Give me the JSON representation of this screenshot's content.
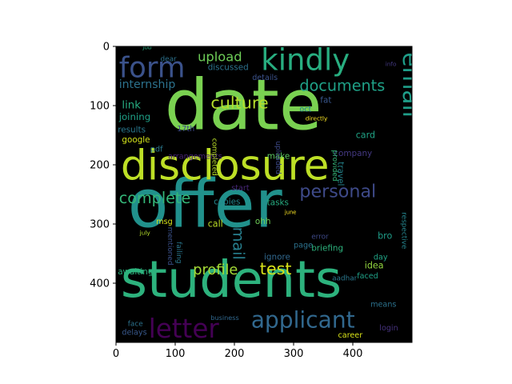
{
  "chart_data": {
    "type": "image",
    "description_kind": "word-cloud",
    "background_color": "#000000",
    "xlim": [
      0,
      500
    ],
    "ylim": [
      500,
      0
    ],
    "x_ticks": [
      0,
      100,
      200,
      300,
      400
    ],
    "y_ticks": [
      0,
      100,
      200,
      300,
      400
    ],
    "words": [
      {
        "text": "offer",
        "x": 20,
        "y": 305,
        "size": 112,
        "color": "#21918c",
        "vertical": false
      },
      {
        "text": "date",
        "x": 82,
        "y": 140,
        "size": 118,
        "color": "#7ad151",
        "vertical": false
      },
      {
        "text": "students",
        "x": 8,
        "y": 423,
        "size": 86,
        "color": "#2db27d",
        "vertical": false
      },
      {
        "text": "disclosure",
        "x": 8,
        "y": 225,
        "size": 70,
        "color": "#bddf26",
        "vertical": false
      },
      {
        "text": "kindly",
        "x": 245,
        "y": 40,
        "size": 50,
        "color": "#28ae80",
        "vertical": false
      },
      {
        "text": "form",
        "x": 5,
        "y": 52,
        "size": 48,
        "color": "#3b528b",
        "vertical": false
      },
      {
        "text": "email",
        "x": 485,
        "y": 10,
        "size": 40,
        "color": "#1f9e89",
        "vertical": true
      },
      {
        "text": "letter",
        "x": 55,
        "y": 492,
        "size": 44,
        "color": "#440154",
        "vertical": false
      },
      {
        "text": "applicant",
        "x": 228,
        "y": 475,
        "size": 38,
        "color": "#31688e",
        "vertical": false
      },
      {
        "text": "personal",
        "x": 310,
        "y": 255,
        "size": 30,
        "color": "#3e4a89",
        "vertical": false
      },
      {
        "text": "complete",
        "x": 5,
        "y": 265,
        "size": 26,
        "color": "#35b779",
        "vertical": false
      },
      {
        "text": "culture",
        "x": 160,
        "y": 105,
        "size": 28,
        "color": "#b5de2b",
        "vertical": false
      },
      {
        "text": "documents",
        "x": 310,
        "y": 75,
        "size": 26,
        "color": "#1fa187",
        "vertical": false
      },
      {
        "text": "upload",
        "x": 138,
        "y": 25,
        "size": 22,
        "color": "#6ece58",
        "vertical": false
      },
      {
        "text": "internship",
        "x": 5,
        "y": 70,
        "size": 19,
        "color": "#2c728e",
        "vertical": false
      },
      {
        "text": "test",
        "x": 243,
        "y": 385,
        "size": 28,
        "color": "#d8e219",
        "vertical": false
      },
      {
        "text": "profile",
        "x": 130,
        "y": 385,
        "size": 24,
        "color": "#a5db36",
        "vertical": false
      },
      {
        "text": "mail",
        "x": 198,
        "y": 305,
        "size": 26,
        "color": "#277f8e",
        "vertical": true
      },
      {
        "text": "link",
        "x": 10,
        "y": 105,
        "size": 18,
        "color": "#27ad81",
        "vertical": false
      },
      {
        "text": "joining",
        "x": 5,
        "y": 124,
        "size": 16,
        "color": "#1fa187",
        "vertical": false
      },
      {
        "text": "results",
        "x": 3,
        "y": 145,
        "size": 14,
        "color": "#2a788e",
        "vertical": false
      },
      {
        "text": "google",
        "x": 10,
        "y": 162,
        "size": 14,
        "color": "#d2e21b",
        "vertical": false
      },
      {
        "text": "pdf",
        "x": 58,
        "y": 178,
        "size": 13,
        "color": "#2a788e",
        "vertical": false
      },
      {
        "text": "arrangements",
        "x": 88,
        "y": 190,
        "size": 13,
        "color": "#482475",
        "vertical": false
      },
      {
        "text": "make",
        "x": 255,
        "y": 190,
        "size": 14,
        "color": "#5ec962",
        "vertical": false
      },
      {
        "text": "company",
        "x": 368,
        "y": 185,
        "size": 14,
        "color": "#443983",
        "vertical": false
      },
      {
        "text": "card",
        "x": 405,
        "y": 155,
        "size": 15,
        "color": "#20a486",
        "vertical": false
      },
      {
        "text": "travel",
        "x": 375,
        "y": 195,
        "size": 14,
        "color": "#25858e",
        "vertical": true
      },
      {
        "text": "provided",
        "x": 366,
        "y": 175,
        "size": 12,
        "color": "#35b779",
        "vertical": true
      },
      {
        "text": "uploaded",
        "x": 270,
        "y": 160,
        "size": 12,
        "color": "#3e4a89",
        "vertical": true
      },
      {
        "text": "completed",
        "x": 163,
        "y": 155,
        "size": 12,
        "color": "#b8de29",
        "vertical": true
      },
      {
        "text": "17th",
        "x": 103,
        "y": 143,
        "size": 13,
        "color": "#3e4a89",
        "vertical": false
      },
      {
        "text": "directly",
        "x": 320,
        "y": 125,
        "size": 10,
        "color": "#fde725",
        "vertical": false
      },
      {
        "text": "oct",
        "x": 310,
        "y": 110,
        "size": 13,
        "color": "#26828e",
        "vertical": false
      },
      {
        "text": "fat",
        "x": 345,
        "y": 95,
        "size": 14,
        "color": "#39568c",
        "vertical": false
      },
      {
        "text": "details",
        "x": 230,
        "y": 57,
        "size": 13,
        "color": "#3b528b",
        "vertical": false
      },
      {
        "text": "discussed",
        "x": 155,
        "y": 40,
        "size": 14,
        "color": "#2c728e",
        "vertical": false
      },
      {
        "text": "dear",
        "x": 75,
        "y": 25,
        "size": 12,
        "color": "#2c728e",
        "vertical": false
      },
      {
        "text": "job",
        "x": 45,
        "y": 5,
        "size": 10,
        "color": "#27ad81",
        "vertical": false
      },
      {
        "text": "info",
        "x": 455,
        "y": 33,
        "size": 10,
        "color": "#443983",
        "vertical": false
      },
      {
        "text": "error",
        "x": 330,
        "y": 325,
        "size": 12,
        "color": "#3e4a89",
        "vertical": false
      },
      {
        "text": "june",
        "x": 285,
        "y": 283,
        "size": 9,
        "color": "#fde725",
        "vertical": false
      },
      {
        "text": "tasks",
        "x": 255,
        "y": 268,
        "size": 14,
        "color": "#26ad81",
        "vertical": false
      },
      {
        "text": "copies",
        "x": 165,
        "y": 267,
        "size": 14,
        "color": "#24868e",
        "vertical": false
      },
      {
        "text": "start",
        "x": 195,
        "y": 243,
        "size": 13,
        "color": "#482878",
        "vertical": false
      },
      {
        "text": "ohh",
        "x": 235,
        "y": 300,
        "size": 14,
        "color": "#6ece58",
        "vertical": false
      },
      {
        "text": "call",
        "x": 155,
        "y": 305,
        "size": 15,
        "color": "#bddf26",
        "vertical": false
      },
      {
        "text": "msg",
        "x": 68,
        "y": 300,
        "size": 13,
        "color": "#d8e219",
        "vertical": false
      },
      {
        "text": "july",
        "x": 40,
        "y": 318,
        "size": 10,
        "color": "#b5de2b",
        "vertical": false
      },
      {
        "text": "mentioned",
        "x": 88,
        "y": 305,
        "size": 12,
        "color": "#3b528b",
        "vertical": true
      },
      {
        "text": "failing",
        "x": 103,
        "y": 330,
        "size": 12,
        "color": "#2a788e",
        "vertical": true
      },
      {
        "text": "page",
        "x": 300,
        "y": 340,
        "size": 13,
        "color": "#2c728e",
        "vertical": false
      },
      {
        "text": "briefing",
        "x": 330,
        "y": 345,
        "size": 14,
        "color": "#2db27d",
        "vertical": false
      },
      {
        "text": "ignore",
        "x": 250,
        "y": 360,
        "size": 14,
        "color": "#31688e",
        "vertical": false
      },
      {
        "text": "bro",
        "x": 442,
        "y": 325,
        "size": 15,
        "color": "#1f9e89",
        "vertical": false
      },
      {
        "text": "respective",
        "x": 483,
        "y": 280,
        "size": 12,
        "color": "#25858e",
        "vertical": true
      },
      {
        "text": "day",
        "x": 435,
        "y": 360,
        "size": 13,
        "color": "#20a486",
        "vertical": false
      },
      {
        "text": "idea",
        "x": 420,
        "y": 375,
        "size": 15,
        "color": "#95d840",
        "vertical": false
      },
      {
        "text": "aadhar",
        "x": 365,
        "y": 395,
        "size": 12,
        "color": "#2a788e",
        "vertical": false
      },
      {
        "text": "faced",
        "x": 407,
        "y": 392,
        "size": 13,
        "color": "#1fa187",
        "vertical": false
      },
      {
        "text": "awaiting",
        "x": 3,
        "y": 385,
        "size": 14,
        "color": "#2db27d",
        "vertical": false
      },
      {
        "text": "means",
        "x": 430,
        "y": 440,
        "size": 13,
        "color": "#2c728e",
        "vertical": false
      },
      {
        "text": "login",
        "x": 445,
        "y": 480,
        "size": 13,
        "color": "#46327e",
        "vertical": false
      },
      {
        "text": "career",
        "x": 375,
        "y": 492,
        "size": 13,
        "color": "#d8e219",
        "vertical": false
      },
      {
        "text": "business",
        "x": 160,
        "y": 462,
        "size": 11,
        "color": "#31688e",
        "vertical": false
      },
      {
        "text": "face",
        "x": 20,
        "y": 472,
        "size": 12,
        "color": "#2c728e",
        "vertical": false
      },
      {
        "text": "delays",
        "x": 10,
        "y": 487,
        "size": 13,
        "color": "#38588c",
        "vertical": false
      }
    ]
  }
}
